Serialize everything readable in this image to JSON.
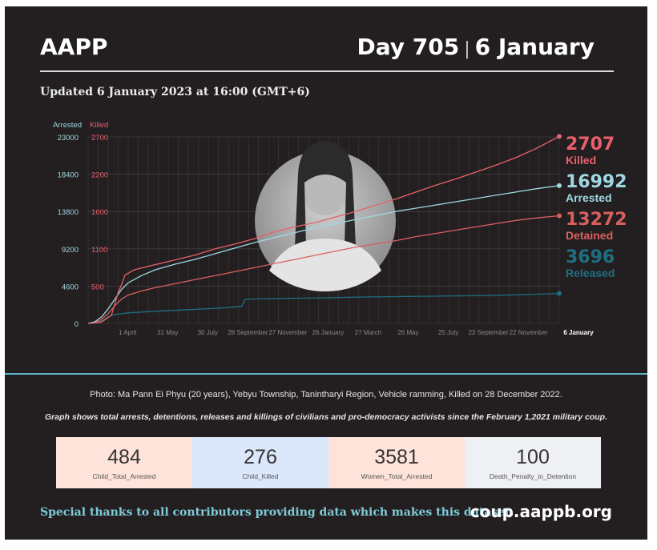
{
  "header": {
    "brand": "AAPP",
    "day": "Day 705",
    "date": "6 January",
    "updated": "Updated 6 January 2023 at 16:00 (GMT+6)"
  },
  "photo": {
    "description_caption": "Photo: Ma Pann Ei Phyu (20 years), Yebyu Township, Tanintharyi Region, Vehicle ramming, Killed on 28 December 2022."
  },
  "caption2": "Graph shows total arrests, detentions, releases and killings of civilians and pro-democracy activists since the February 1,2021 military coup.",
  "colors": {
    "killed": "#e8606a",
    "arrested": "#9fd8e3",
    "detained": "#d9605f",
    "released": "#1f6f82",
    "bg": "#231f20",
    "grid": "#4a4546",
    "accent_line": "#5fb3c9"
  },
  "chart_data": {
    "type": "line",
    "left_axis": {
      "title": "Arrested",
      "ticks": [
        "23000",
        "18400",
        "13800",
        "9200",
        "4600",
        "0"
      ],
      "range": [
        0,
        23000
      ]
    },
    "right_axis": {
      "title": "Killed",
      "ticks": [
        "2700",
        "2200",
        "1600",
        "1100",
        "500",
        ""
      ],
      "range": [
        0,
        2700
      ]
    },
    "x_ticks": [
      "1 April",
      "31 May",
      "30 July",
      "28 September",
      "27 November",
      "26 January",
      "27 March",
      "26 May",
      "25 July",
      "23 September",
      "22 November"
    ],
    "x_end_label": "6 January",
    "x_range_days": [
      0,
      705
    ],
    "x_tick_days": [
      59,
      119,
      179,
      239,
      299,
      359,
      419,
      479,
      539,
      599,
      659
    ],
    "series": [
      {
        "name": "Killed",
        "value_label": "2707",
        "axis": "right",
        "color": "#e8606a",
        "points": [
          [
            0,
            0
          ],
          [
            20,
            20
          ],
          [
            35,
            120
          ],
          [
            45,
            450
          ],
          [
            50,
            560
          ],
          [
            55,
            700
          ],
          [
            70,
            780
          ],
          [
            100,
            850
          ],
          [
            130,
            920
          ],
          [
            160,
            990
          ],
          [
            190,
            1080
          ],
          [
            220,
            1150
          ],
          [
            250,
            1230
          ],
          [
            280,
            1330
          ],
          [
            310,
            1400
          ],
          [
            340,
            1460
          ],
          [
            370,
            1540
          ],
          [
            400,
            1620
          ],
          [
            430,
            1710
          ],
          [
            460,
            1800
          ],
          [
            490,
            1900
          ],
          [
            520,
            2000
          ],
          [
            550,
            2090
          ],
          [
            580,
            2190
          ],
          [
            610,
            2290
          ],
          [
            640,
            2400
          ],
          [
            670,
            2530
          ],
          [
            705,
            2707
          ]
        ]
      },
      {
        "name": "Arrested",
        "value_label": "16992",
        "axis": "left",
        "color": "#9fd8e3",
        "points": [
          [
            0,
            0
          ],
          [
            10,
            200
          ],
          [
            20,
            800
          ],
          [
            30,
            1800
          ],
          [
            40,
            3000
          ],
          [
            50,
            4200
          ],
          [
            60,
            5000
          ],
          [
            80,
            5900
          ],
          [
            100,
            6600
          ],
          [
            130,
            7300
          ],
          [
            160,
            7900
          ],
          [
            190,
            8600
          ],
          [
            220,
            9300
          ],
          [
            250,
            10000
          ],
          [
            280,
            10600
          ],
          [
            310,
            11200
          ],
          [
            340,
            11800
          ],
          [
            370,
            12300
          ],
          [
            400,
            12800
          ],
          [
            430,
            13300
          ],
          [
            460,
            13800
          ],
          [
            490,
            14200
          ],
          [
            520,
            14600
          ],
          [
            550,
            15000
          ],
          [
            580,
            15400
          ],
          [
            610,
            15800
          ],
          [
            640,
            16200
          ],
          [
            670,
            16600
          ],
          [
            705,
            16992
          ]
        ]
      },
      {
        "name": "Detained",
        "value_label": "13272",
        "axis": "left",
        "color": "#d9605f",
        "points": [
          [
            0,
            0
          ],
          [
            10,
            100
          ],
          [
            20,
            500
          ],
          [
            30,
            1200
          ],
          [
            40,
            2200
          ],
          [
            50,
            3000
          ],
          [
            60,
            3500
          ],
          [
            80,
            4000
          ],
          [
            100,
            4400
          ],
          [
            130,
            4900
          ],
          [
            160,
            5400
          ],
          [
            190,
            5900
          ],
          [
            220,
            6400
          ],
          [
            250,
            6900
          ],
          [
            280,
            7400
          ],
          [
            310,
            7900
          ],
          [
            340,
            8400
          ],
          [
            370,
            8900
          ],
          [
            400,
            9400
          ],
          [
            430,
            9800
          ],
          [
            460,
            10200
          ],
          [
            490,
            10700
          ],
          [
            520,
            11100
          ],
          [
            550,
            11500
          ],
          [
            580,
            11900
          ],
          [
            610,
            12300
          ],
          [
            640,
            12700
          ],
          [
            670,
            13000
          ],
          [
            705,
            13272
          ]
        ]
      },
      {
        "name": "Released",
        "value_label": "3696",
        "axis": "left",
        "color": "#1f6f82",
        "points": [
          [
            0,
            0
          ],
          [
            10,
            50
          ],
          [
            20,
            300
          ],
          [
            30,
            800
          ],
          [
            40,
            1100
          ],
          [
            60,
            1300
          ],
          [
            100,
            1500
          ],
          [
            150,
            1700
          ],
          [
            200,
            1900
          ],
          [
            230,
            2100
          ],
          [
            235,
            3000
          ],
          [
            240,
            3000
          ],
          [
            300,
            3100
          ],
          [
            350,
            3150
          ],
          [
            400,
            3250
          ],
          [
            450,
            3300
          ],
          [
            500,
            3350
          ],
          [
            550,
            3400
          ],
          [
            600,
            3450
          ],
          [
            650,
            3550
          ],
          [
            705,
            3696
          ]
        ]
      }
    ]
  },
  "stats": [
    {
      "value": "484",
      "label": "Child_Total_Arrested",
      "color": "#fde3da"
    },
    {
      "value": "276",
      "label": "Child_Killed",
      "color": "#dbe7fb"
    },
    {
      "value": "3581",
      "label": "Women_Total_Arrested",
      "color": "#fde3da"
    },
    {
      "value": "100",
      "label": "Death_Penalty_in_Detention",
      "color": "#eef0f3"
    }
  ],
  "footer": {
    "thanks": "Special thanks to all contributors providing data which makes this dataset.",
    "site": "coup.aappb.org"
  }
}
